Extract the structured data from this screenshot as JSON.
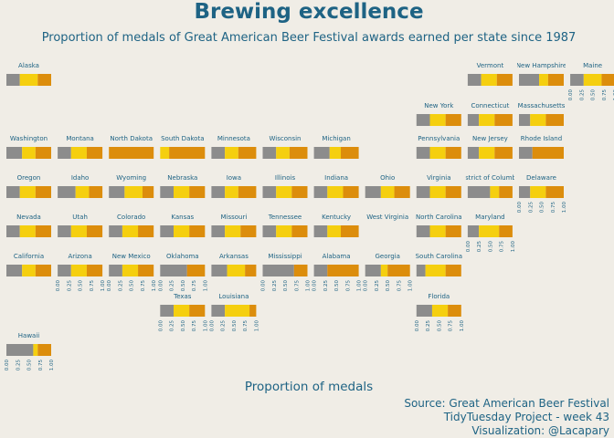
{
  "title": "Brewing excellence",
  "subtitle": "Proportion of medals of Great American Beer Festival awards earned per state since 1987",
  "caption": {
    "source": "Source:  Great American Beer Festival",
    "project": "TidyTuesday Project - week 43",
    "credit": "Visualization: @Lacapary"
  },
  "colors": {
    "background": "#f0ede6",
    "text": "#1e6384",
    "bronze": "#8c8c8c",
    "silver": "#f5cf0f",
    "gold": "#dc8d0c"
  },
  "chart_data": {
    "type": "bar",
    "orientation": "horizontal-stacked",
    "layout": "geofacet-us-state-grid",
    "xlabel": "Proportion of medals",
    "xlim": [
      0,
      1
    ],
    "x_ticks": [
      "0.00",
      "0.25",
      "0.50",
      "0.75",
      "1.00"
    ],
    "grid": false,
    "legend": "none",
    "series_order": [
      "bronze",
      "silver",
      "gold"
    ],
    "states": [
      {
        "name": "Alaska",
        "col": 0,
        "row": 0,
        "values": [
          0.3,
          0.4,
          0.3
        ],
        "ticks": false
      },
      {
        "name": "Vermont",
        "col": 9,
        "row": 0,
        "values": [
          0.3,
          0.35,
          0.35
        ],
        "ticks": false
      },
      {
        "name": "New Hampshire",
        "col": 10,
        "row": 0,
        "values": [
          0.45,
          0.2,
          0.35
        ],
        "ticks": false
      },
      {
        "name": "Maine",
        "col": 11,
        "row": 0,
        "values": [
          0.3,
          0.4,
          0.3
        ],
        "ticks": true
      },
      {
        "name": "New York",
        "col": 8,
        "row": 1,
        "values": [
          0.3,
          0.35,
          0.35
        ],
        "ticks": false
      },
      {
        "name": "Connecticut",
        "col": 9,
        "row": 1,
        "values": [
          0.25,
          0.35,
          0.4
        ],
        "ticks": false
      },
      {
        "name": "Massachusetts",
        "col": 10,
        "row": 1,
        "values": [
          0.25,
          0.35,
          0.4
        ],
        "ticks": false
      },
      {
        "name": "Washington",
        "col": 0,
        "row": 2,
        "values": [
          0.35,
          0.3,
          0.35
        ],
        "ticks": false
      },
      {
        "name": "Montana",
        "col": 1,
        "row": 2,
        "values": [
          0.3,
          0.35,
          0.35
        ],
        "ticks": false
      },
      {
        "name": "North Dakota",
        "col": 2,
        "row": 2,
        "values": [
          0.0,
          0.0,
          1.0
        ],
        "ticks": false
      },
      {
        "name": "South Dakota",
        "col": 3,
        "row": 2,
        "values": [
          0.0,
          0.2,
          0.8
        ],
        "ticks": false
      },
      {
        "name": "Minnesota",
        "col": 4,
        "row": 2,
        "values": [
          0.3,
          0.3,
          0.4
        ],
        "ticks": false
      },
      {
        "name": "Wisconsin",
        "col": 5,
        "row": 2,
        "values": [
          0.3,
          0.3,
          0.4
        ],
        "ticks": false
      },
      {
        "name": "Michigan",
        "col": 6,
        "row": 2,
        "values": [
          0.35,
          0.25,
          0.4
        ],
        "ticks": false
      },
      {
        "name": "Pennsylvania",
        "col": 8,
        "row": 2,
        "values": [
          0.3,
          0.35,
          0.35
        ],
        "ticks": false
      },
      {
        "name": "New Jersey",
        "col": 9,
        "row": 2,
        "values": [
          0.25,
          0.35,
          0.4
        ],
        "ticks": false
      },
      {
        "name": "Rhode Island",
        "col": 10,
        "row": 2,
        "values": [
          0.3,
          0.0,
          0.7
        ],
        "ticks": false
      },
      {
        "name": "Oregon",
        "col": 0,
        "row": 3,
        "values": [
          0.3,
          0.35,
          0.35
        ],
        "ticks": false
      },
      {
        "name": "Idaho",
        "col": 1,
        "row": 3,
        "values": [
          0.4,
          0.3,
          0.3
        ],
        "ticks": false
      },
      {
        "name": "Wyoming",
        "col": 2,
        "row": 3,
        "values": [
          0.35,
          0.4,
          0.25
        ],
        "ticks": false
      },
      {
        "name": "Nebraska",
        "col": 3,
        "row": 3,
        "values": [
          0.3,
          0.35,
          0.35
        ],
        "ticks": false
      },
      {
        "name": "Iowa",
        "col": 4,
        "row": 3,
        "values": [
          0.3,
          0.3,
          0.4
        ],
        "ticks": false
      },
      {
        "name": "Illinois",
        "col": 5,
        "row": 3,
        "values": [
          0.3,
          0.35,
          0.35
        ],
        "ticks": false
      },
      {
        "name": "Indiana",
        "col": 6,
        "row": 3,
        "values": [
          0.3,
          0.35,
          0.35
        ],
        "ticks": false
      },
      {
        "name": "Ohio",
        "col": 7,
        "row": 3,
        "values": [
          0.35,
          0.3,
          0.35
        ],
        "ticks": false
      },
      {
        "name": "Virginia",
        "col": 8,
        "row": 3,
        "values": [
          0.3,
          0.35,
          0.35
        ],
        "ticks": false
      },
      {
        "name": "District of Columbia",
        "col": 9,
        "row": 3,
        "values": [
          0.5,
          0.2,
          0.3
        ],
        "ticks": false
      },
      {
        "name": "Delaware",
        "col": 10,
        "row": 3,
        "values": [
          0.25,
          0.35,
          0.4
        ],
        "ticks": true
      },
      {
        "name": "Nevada",
        "col": 0,
        "row": 4,
        "values": [
          0.3,
          0.35,
          0.35
        ],
        "ticks": false
      },
      {
        "name": "Utah",
        "col": 1,
        "row": 4,
        "values": [
          0.3,
          0.35,
          0.35
        ],
        "ticks": false
      },
      {
        "name": "Colorado",
        "col": 2,
        "row": 4,
        "values": [
          0.3,
          0.35,
          0.35
        ],
        "ticks": false
      },
      {
        "name": "Kansas",
        "col": 3,
        "row": 4,
        "values": [
          0.3,
          0.35,
          0.35
        ],
        "ticks": false
      },
      {
        "name": "Missouri",
        "col": 4,
        "row": 4,
        "values": [
          0.3,
          0.35,
          0.35
        ],
        "ticks": false
      },
      {
        "name": "Tennessee",
        "col": 5,
        "row": 4,
        "values": [
          0.3,
          0.35,
          0.35
        ],
        "ticks": false
      },
      {
        "name": "Kentucky",
        "col": 6,
        "row": 4,
        "values": [
          0.3,
          0.3,
          0.4
        ],
        "ticks": false
      },
      {
        "name": "West Virginia",
        "col": 7,
        "row": 4,
        "values": [
          0.0,
          0.0,
          0.0
        ],
        "ticks": false
      },
      {
        "name": "North Carolina",
        "col": 8,
        "row": 4,
        "values": [
          0.3,
          0.35,
          0.35
        ],
        "ticks": false
      },
      {
        "name": "Maryland",
        "col": 9,
        "row": 4,
        "values": [
          0.25,
          0.45,
          0.3
        ],
        "ticks": true
      },
      {
        "name": "California",
        "col": 0,
        "row": 5,
        "values": [
          0.35,
          0.3,
          0.35
        ],
        "ticks": false
      },
      {
        "name": "Arizona",
        "col": 1,
        "row": 5,
        "values": [
          0.3,
          0.35,
          0.35
        ],
        "ticks": true
      },
      {
        "name": "New Mexico",
        "col": 2,
        "row": 5,
        "values": [
          0.3,
          0.35,
          0.35
        ],
        "ticks": true
      },
      {
        "name": "Oklahoma",
        "col": 3,
        "row": 5,
        "values": [
          0.6,
          0.0,
          0.4
        ],
        "ticks": true
      },
      {
        "name": "Arkansas",
        "col": 4,
        "row": 5,
        "values": [
          0.35,
          0.4,
          0.25
        ],
        "ticks": false
      },
      {
        "name": "Mississippi",
        "col": 5,
        "row": 5,
        "values": [
          0.7,
          0.0,
          0.3
        ],
        "ticks": true
      },
      {
        "name": "Alabama",
        "col": 6,
        "row": 5,
        "values": [
          0.3,
          0.0,
          0.7
        ],
        "ticks": true
      },
      {
        "name": "Georgia",
        "col": 7,
        "row": 5,
        "values": [
          0.35,
          0.15,
          0.5
        ],
        "ticks": true
      },
      {
        "name": "South Carolina",
        "col": 8,
        "row": 5,
        "values": [
          0.2,
          0.45,
          0.35
        ],
        "ticks": false
      },
      {
        "name": "Texas",
        "col": 3,
        "row": 6,
        "values": [
          0.3,
          0.35,
          0.35
        ],
        "ticks": true
      },
      {
        "name": "Louisiana",
        "col": 4,
        "row": 6,
        "values": [
          0.3,
          0.55,
          0.15
        ],
        "ticks": true
      },
      {
        "name": "Florida",
        "col": 8,
        "row": 6,
        "values": [
          0.35,
          0.35,
          0.3
        ],
        "ticks": true
      },
      {
        "name": "Hawaii",
        "col": 0,
        "row": 7,
        "values": [
          0.6,
          0.1,
          0.3
        ],
        "ticks": true
      }
    ]
  }
}
